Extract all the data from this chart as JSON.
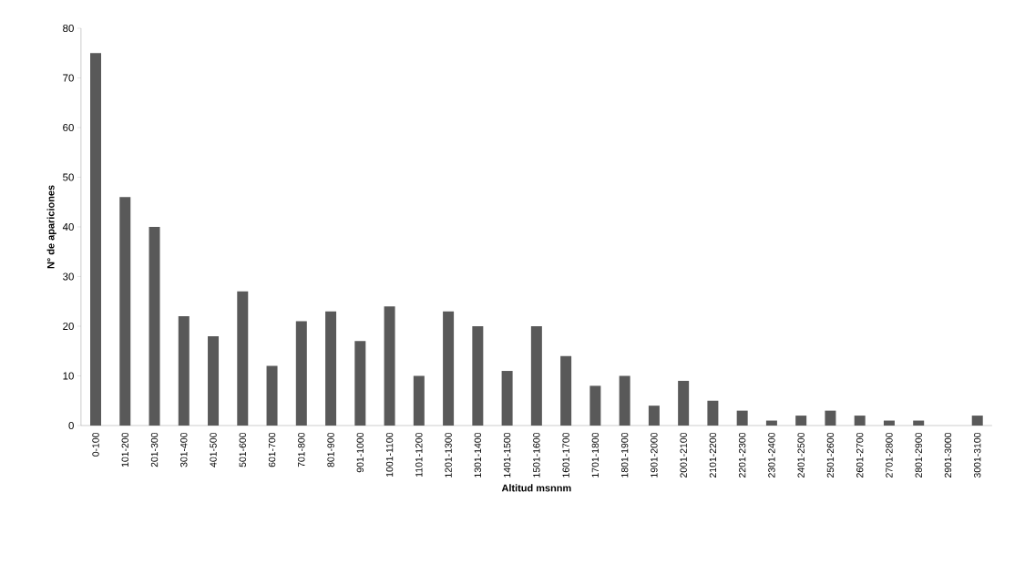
{
  "chart_data": {
    "type": "bar",
    "xlabel": "Altitud msnnm",
    "ylabel": "N° de apariciones",
    "categories": [
      "0-100",
      "101-200",
      "201-300",
      "301-400",
      "401-500",
      "501-600",
      "601-700",
      "701-800",
      "801-900",
      "901-1000",
      "1001-1100",
      "1101-1200",
      "1201-1300",
      "1301-1400",
      "1401-1500",
      "1501-1600",
      "1601-1700",
      "1701-1800",
      "1801-1900",
      "1901-2000",
      "2001-2100",
      "2101-2200",
      "2201-2300",
      "2301-2400",
      "2401-2500",
      "2501-2600",
      "2601-2700",
      "2701-2800",
      "2801-2900",
      "2901-3000",
      "3001-3100"
    ],
    "values": [
      75,
      46,
      40,
      22,
      18,
      27,
      12,
      21,
      23,
      17,
      24,
      10,
      23,
      20,
      11,
      20,
      14,
      8,
      10,
      4,
      9,
      5,
      3,
      1,
      2,
      3,
      2,
      1,
      1,
      0,
      2
    ],
    "color": "#595959",
    "ylim": [
      0,
      80
    ],
    "yticks": [
      0,
      10,
      20,
      30,
      40,
      50,
      60,
      70,
      80
    ]
  }
}
